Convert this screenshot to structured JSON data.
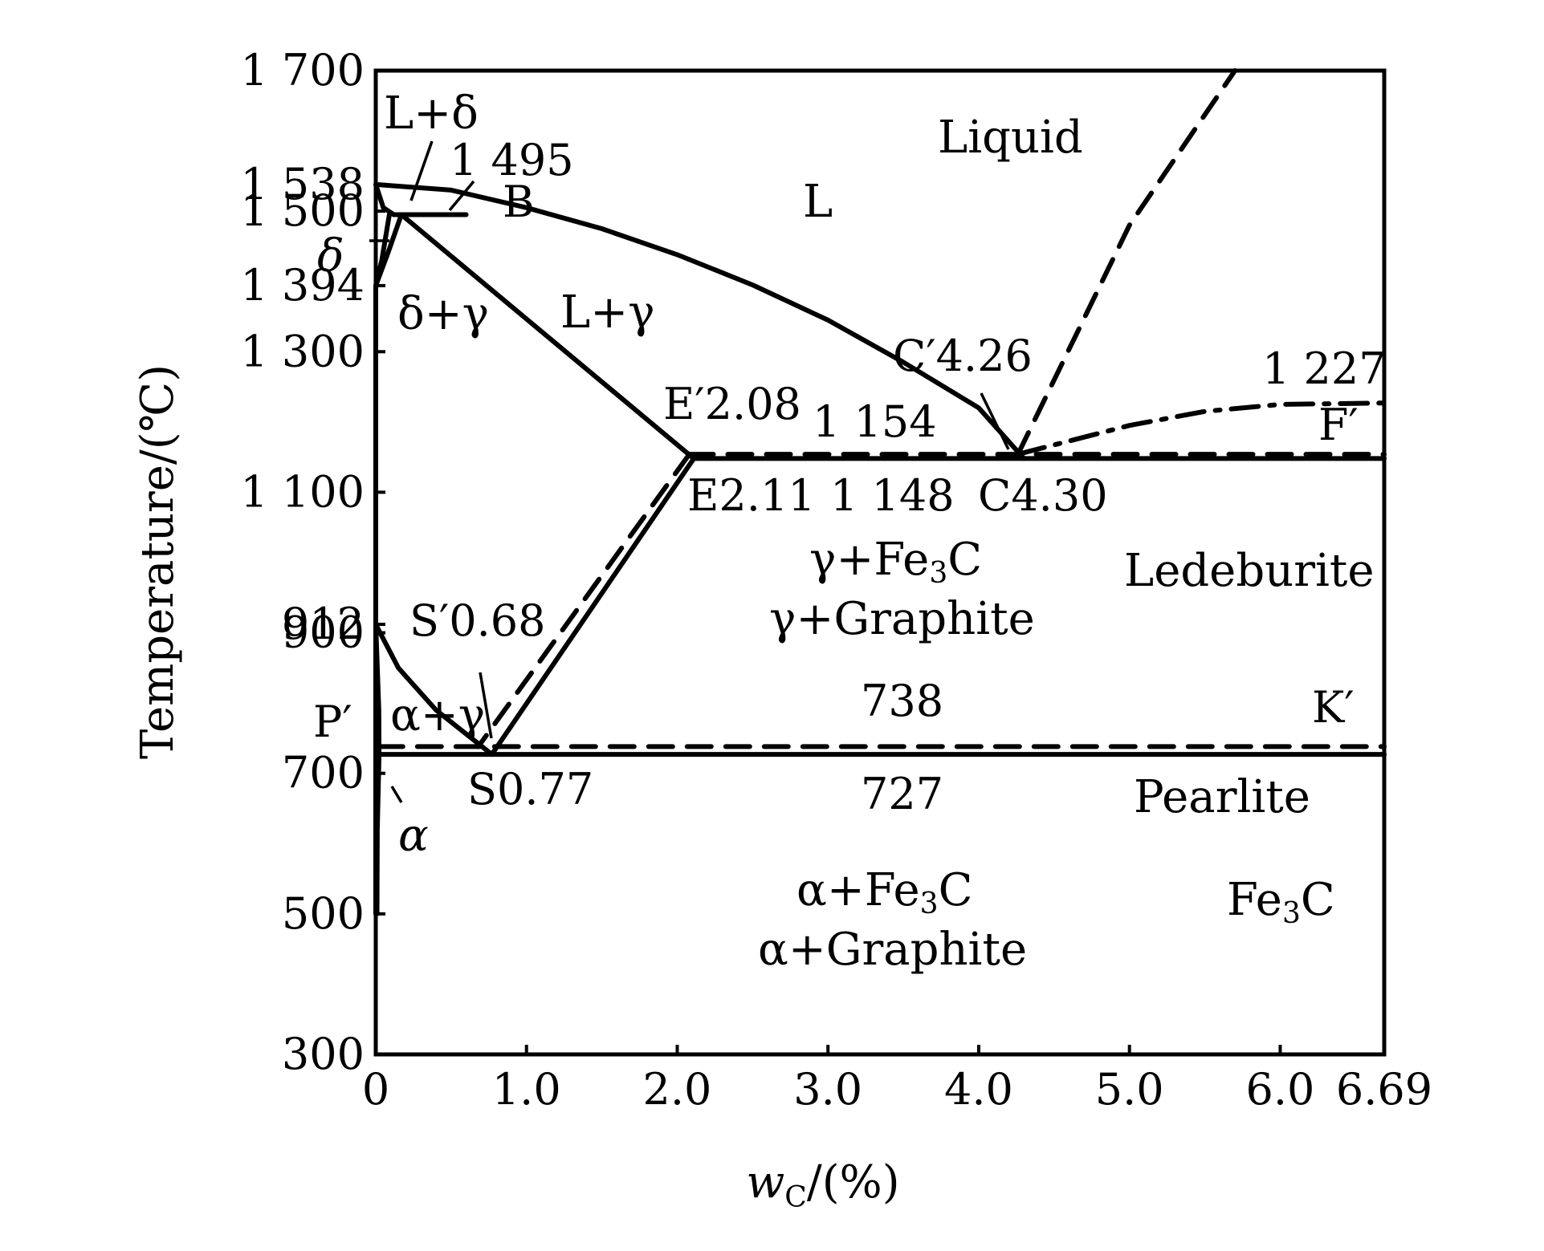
{
  "chart_data": {
    "type": "line",
    "title": "",
    "xlabel": "w",
    "xlabel_sub": "C",
    "xlabel_tail": "/(%)",
    "ylabel": "Temperature/(℃)",
    "xlim": [
      0,
      6.69
    ],
    "ylim": [
      300,
      1700
    ],
    "x_ticks": [
      {
        "value": 0,
        "label": "0"
      },
      {
        "value": 1.0,
        "label": "1.0"
      },
      {
        "value": 2.0,
        "label": "2.0"
      },
      {
        "value": 3.0,
        "label": "3.0"
      },
      {
        "value": 4.0,
        "label": "4.0"
      },
      {
        "value": 5.0,
        "label": "5.0"
      },
      {
        "value": 6.0,
        "label": "6.0"
      },
      {
        "value": 6.69,
        "label": "6.69"
      }
    ],
    "y_ticks": [
      {
        "value": 1700,
        "label": "1 700"
      },
      {
        "value": 1538,
        "label": "1 538"
      },
      {
        "value": 1500,
        "label": "1 500"
      },
      {
        "value": 1394,
        "label": "1 394"
      },
      {
        "value": 1300,
        "label": "1 300"
      },
      {
        "value": 1100,
        "label": "1 100"
      },
      {
        "value": 912,
        "label": "912"
      },
      {
        "value": 900,
        "label": "900"
      },
      {
        "value": 700,
        "label": "700"
      },
      {
        "value": 500,
        "label": "500"
      },
      {
        "value": 300,
        "label": "300"
      }
    ],
    "series": [
      {
        "style": "solid",
        "points": [
          [
            0,
            1538
          ],
          [
            0.05,
            1505
          ],
          [
            0.12,
            1495
          ]
        ]
      },
      {
        "style": "solid",
        "points": [
          [
            0,
            1538
          ],
          [
            0.5,
            1530
          ],
          [
            1.0,
            1505
          ],
          [
            1.5,
            1475
          ],
          [
            2.0,
            1438
          ],
          [
            2.5,
            1395
          ],
          [
            3.0,
            1345
          ],
          [
            3.5,
            1285
          ],
          [
            4.0,
            1220
          ],
          [
            4.3,
            1148
          ]
        ]
      },
      {
        "style": "solid",
        "points": [
          [
            0.12,
            1495
          ],
          [
            0.6,
            1495
          ]
        ]
      },
      {
        "style": "solid",
        "points": [
          [
            0.09,
            1495
          ],
          [
            0.04,
            1430
          ],
          [
            0,
            1394
          ]
        ]
      },
      {
        "style": "solid",
        "points": [
          [
            0.17,
            1495
          ],
          [
            0.08,
            1440
          ],
          [
            0,
            1394
          ]
        ]
      },
      {
        "style": "solid",
        "points": [
          [
            0.17,
            1495
          ],
          [
            2.11,
            1148
          ]
        ]
      },
      {
        "style": "solid",
        "points": [
          [
            2.11,
            1148
          ],
          [
            6.69,
            1148
          ]
        ]
      },
      {
        "style": "solid",
        "points": [
          [
            2.11,
            1148
          ],
          [
            0.77,
            727
          ]
        ]
      },
      {
        "style": "solid",
        "points": [
          [
            0,
            912
          ],
          [
            0.15,
            850
          ],
          [
            0.4,
            790
          ],
          [
            0.77,
            727
          ]
        ]
      },
      {
        "style": "solid",
        "points": [
          [
            0,
            912
          ],
          [
            0.02,
            790
          ],
          [
            0.0218,
            727
          ]
        ]
      },
      {
        "style": "solid",
        "points": [
          [
            0.02,
            727
          ],
          [
            6.69,
            727
          ]
        ]
      },
      {
        "style": "solid",
        "points": [
          [
            0.0218,
            727
          ],
          [
            0.01,
            620
          ],
          [
            0.008,
            500
          ]
        ]
      },
      {
        "style": "solid",
        "points": [
          [
            0,
            1394
          ],
          [
            0,
            500
          ]
        ]
      },
      {
        "style": "dashed",
        "points": [
          [
            2.08,
            1154
          ],
          [
            6.69,
            1154
          ]
        ]
      },
      {
        "style": "dashed",
        "points": [
          [
            2.08,
            1154
          ],
          [
            0.68,
            738
          ]
        ]
      },
      {
        "style": "dashed",
        "points": [
          [
            0.02,
            738
          ],
          [
            6.69,
            738
          ]
        ]
      },
      {
        "style": "dashed",
        "points": [
          [
            4.26,
            1154
          ],
          [
            5.0,
            1480
          ],
          [
            5.7,
            1700
          ]
        ]
      },
      {
        "style": "dashdot",
        "points": [
          [
            4.26,
            1154
          ],
          [
            5.0,
            1195
          ],
          [
            5.5,
            1215
          ],
          [
            6.0,
            1225
          ],
          [
            6.69,
            1227
          ]
        ]
      }
    ],
    "annotations": {
      "L_plus_delta": "L+δ",
      "liquid": "Liquid",
      "t1495": "1 495",
      "B": "B",
      "L": "L",
      "delta": "δ",
      "delta_plus_gamma": "δ+γ",
      "L_plus_gamma": "L+γ",
      "C_prime": "C′4.26",
      "t1227": "1 227",
      "E_prime": "E′2.08",
      "t1154": "1 154",
      "F_prime": "F′",
      "E": "E2.11",
      "t1148": "1 148",
      "C": "C4.30",
      "gamma_fe3c": "γ+Fe",
      "gamma_fe3c_sub": "3",
      "gamma_fe3c_tail": "C",
      "ledeburite": "Ledeburite",
      "S_prime": "S′0.68",
      "gamma_graphite": "γ+Graphite",
      "P_prime": "P′",
      "alpha_plus_gamma": "α+γ",
      "t738": "738",
      "K_prime": "K′",
      "S": "S0.77",
      "t727": "727",
      "pearlite": "Pearlite",
      "alpha": "α",
      "alpha_fe3c": "α+Fe",
      "alpha_fe3c_sub": "3",
      "alpha_fe3c_tail": "C",
      "fe3c": "Fe",
      "fe3c_sub": "3",
      "fe3c_tail": "C",
      "alpha_graphite": "α+Graphite"
    }
  }
}
